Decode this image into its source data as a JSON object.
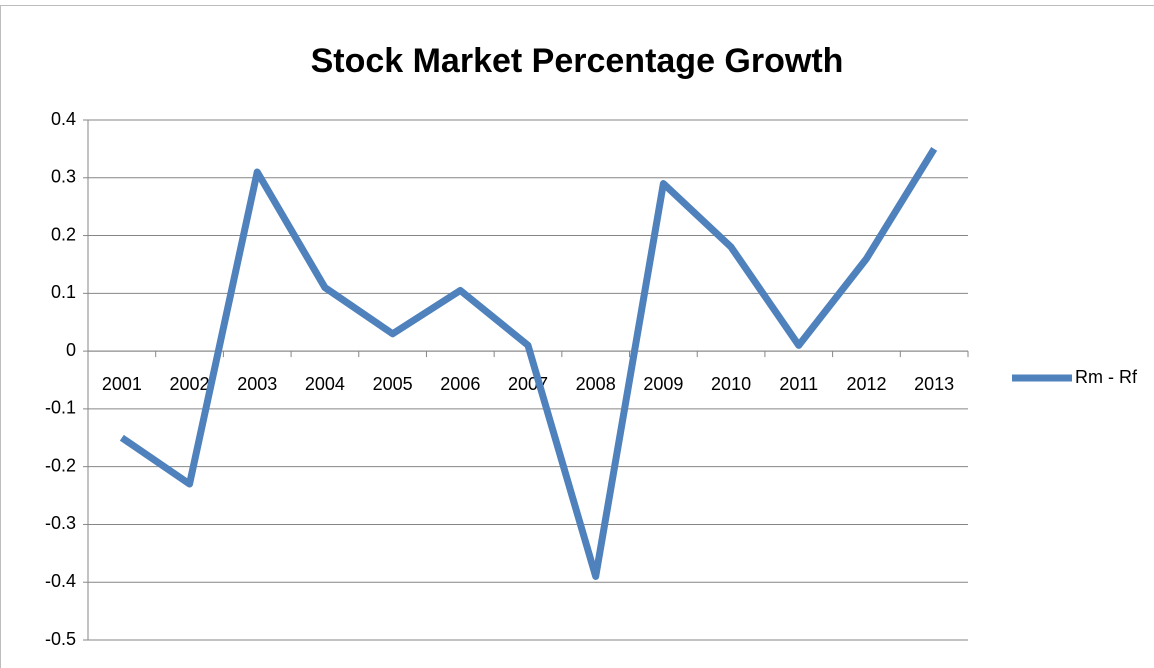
{
  "chart_data": {
    "type": "line",
    "title": "Stock Market Percentage Growth",
    "categories": [
      "2001",
      "2002",
      "2003",
      "2004",
      "2005",
      "2006",
      "2007",
      "2008",
      "2009",
      "2010",
      "2011",
      "2012",
      "2013"
    ],
    "series": [
      {
        "name": "Rm - Rf",
        "color": "#4f81bd",
        "values": [
          -0.15,
          -0.23,
          0.31,
          0.11,
          0.03,
          0.105,
          0.01,
          -0.39,
          0.29,
          0.18,
          0.01,
          0.16,
          0.35
        ]
      }
    ],
    "ylim": [
      -0.5,
      0.4
    ],
    "yticks": [
      0.4,
      0.3,
      0.2,
      0.1,
      0,
      -0.1,
      -0.2,
      -0.3,
      -0.4,
      -0.5
    ],
    "grid": true,
    "legend": "right"
  }
}
